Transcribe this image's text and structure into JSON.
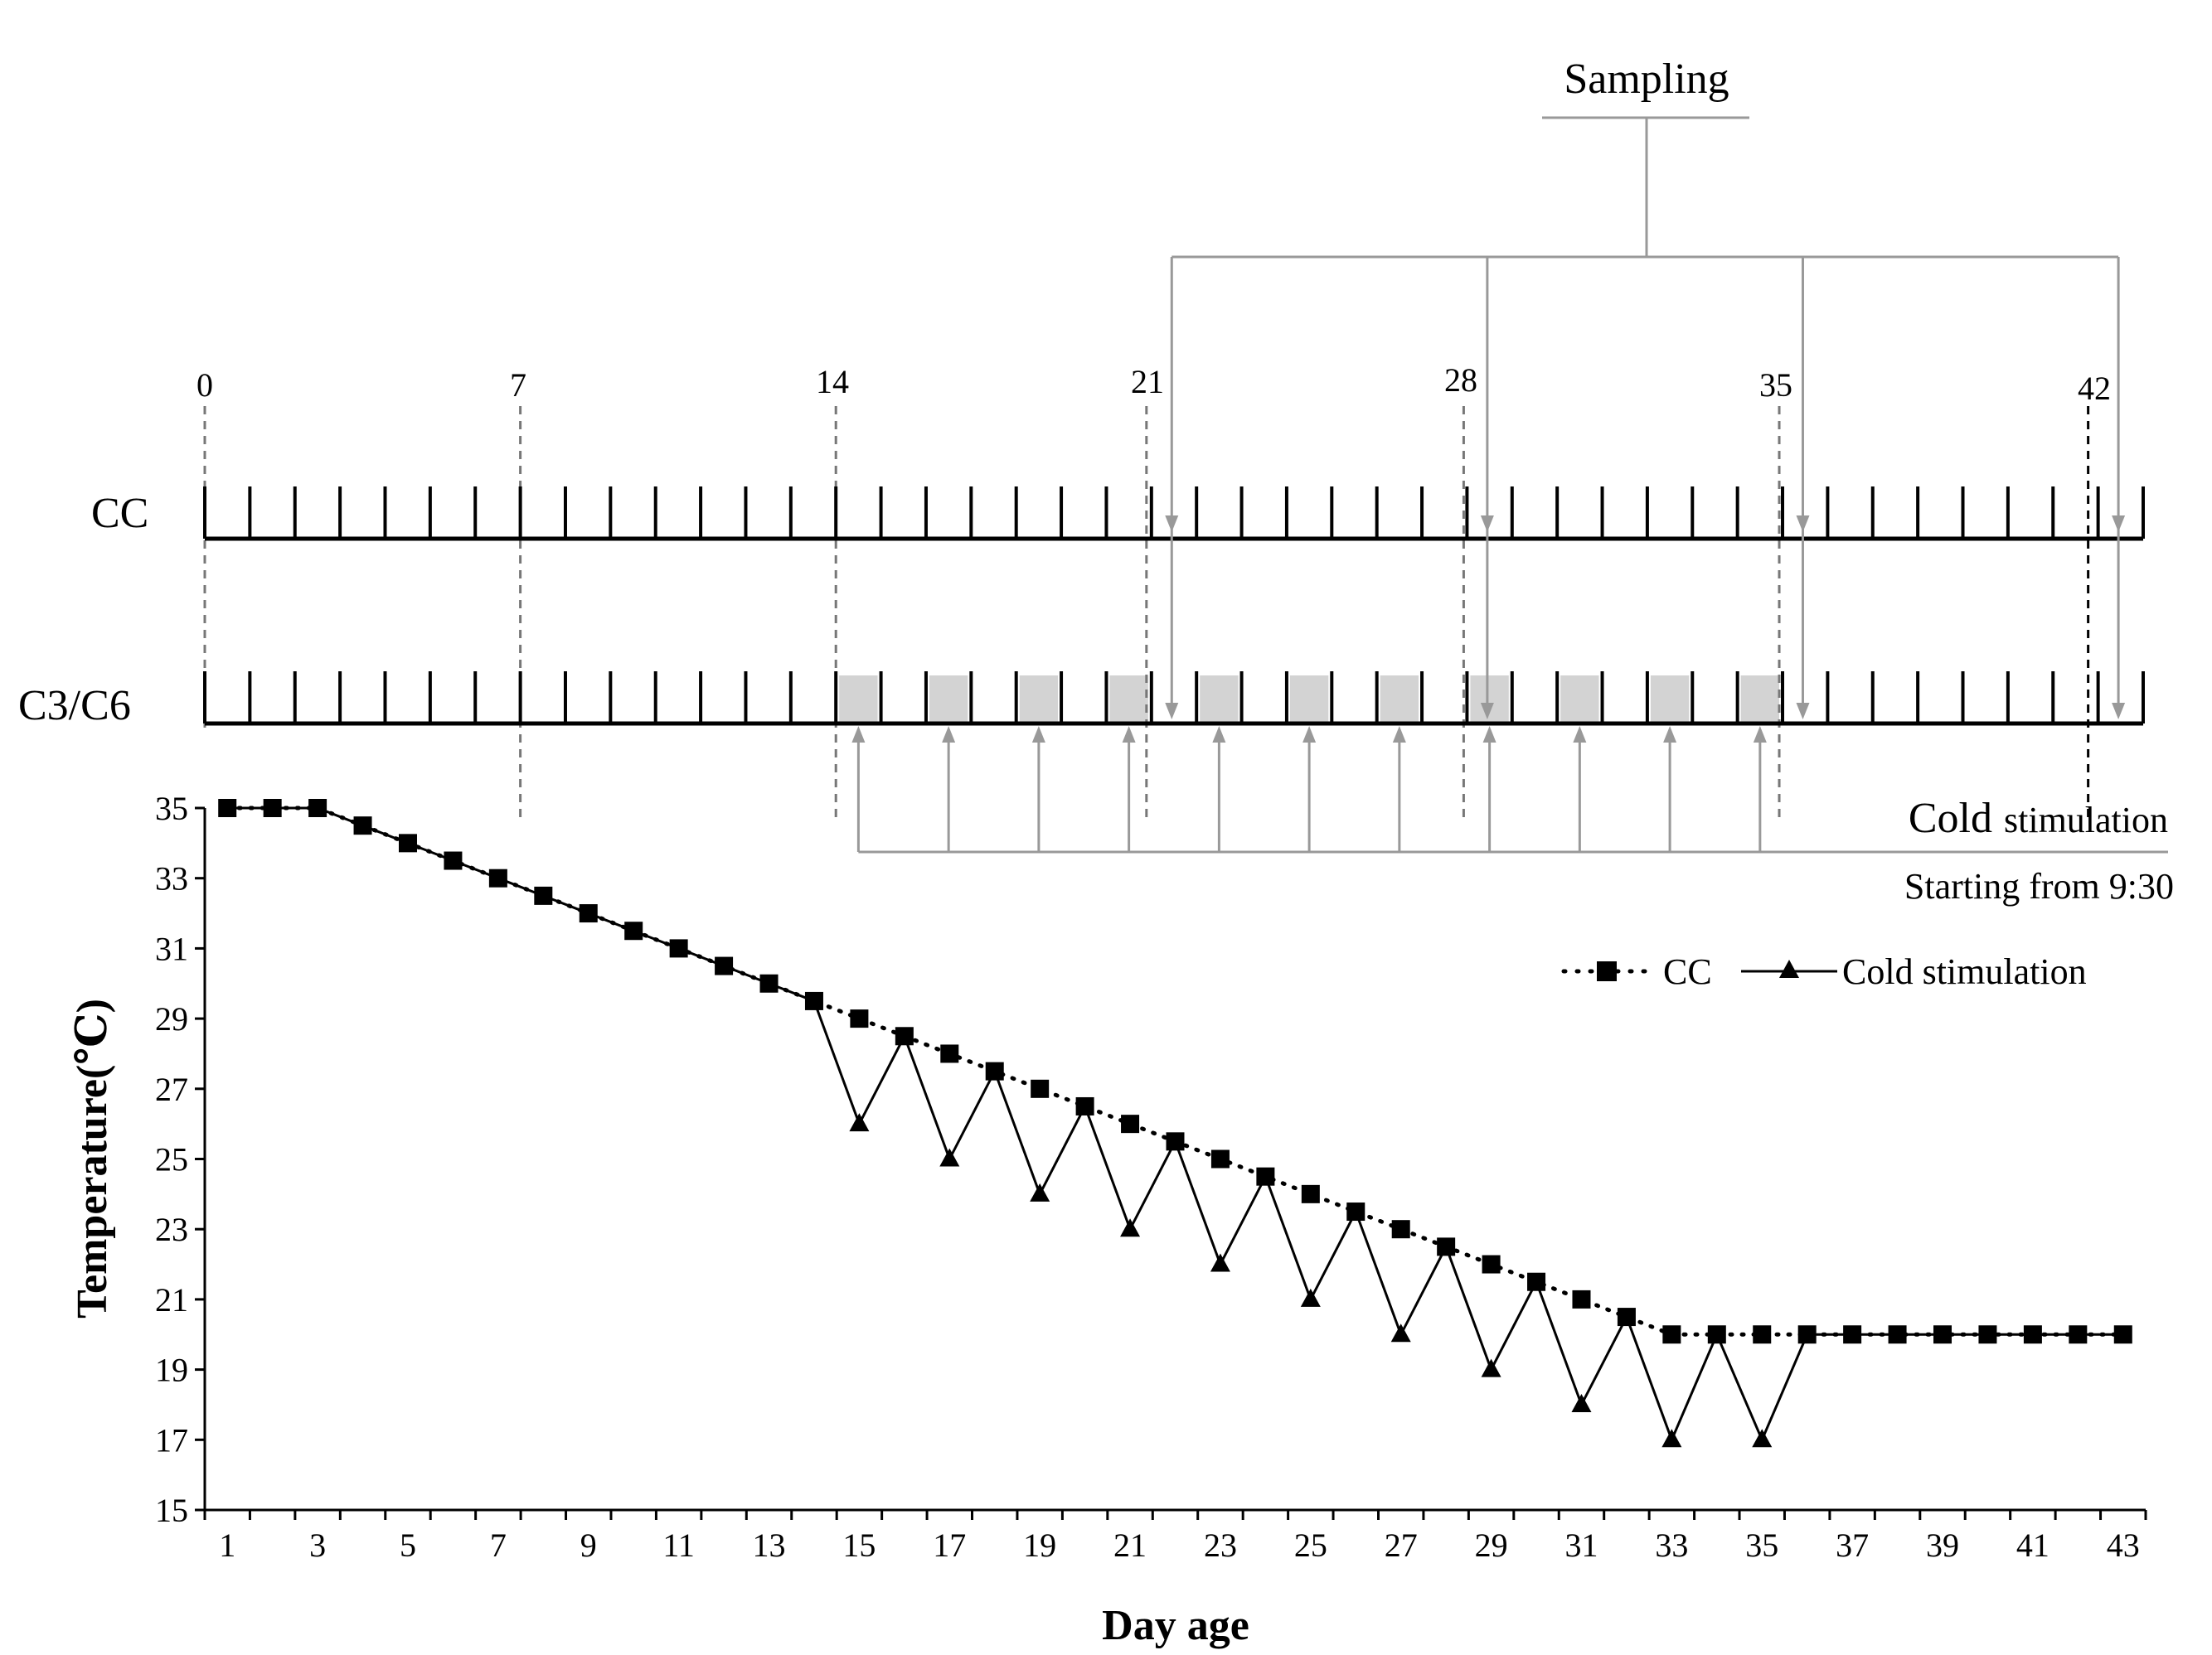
{
  "timeline": {
    "marker_days": [
      "0",
      "7",
      "14",
      "21",
      "28",
      "35",
      "42"
    ],
    "row_cc_label": "CC",
    "row_cold_label": "C3/C6",
    "sampling_label": "Sampling",
    "cold_label_main": "Cold",
    "cold_label_rest": "stimulation",
    "start_time_label": "Starting from 9:30",
    "cold_window_days": [
      14,
      16,
      18,
      20,
      22,
      24,
      26,
      28,
      30,
      32,
      34
    ],
    "sampling_days": [
      21,
      28,
      35,
      42
    ]
  },
  "colors": {
    "line": "#000000",
    "guide": "#999999",
    "dashed": "#777777",
    "shade": "#d3d3d3"
  },
  "chart_data": {
    "type": "line",
    "title": "",
    "xlabel": "Day age",
    "ylabel": "Temperature(℃)",
    "xlim": [
      1,
      43
    ],
    "ylim": [
      15,
      35
    ],
    "x_tick_labels": [
      "1",
      "3",
      "5",
      "7",
      "9",
      "11",
      "13",
      "15",
      "17",
      "19",
      "21",
      "23",
      "25",
      "27",
      "29",
      "31",
      "33",
      "35",
      "37",
      "39",
      "41",
      "43"
    ],
    "y_tick_labels": [
      "15",
      "17",
      "19",
      "21",
      "23",
      "25",
      "27",
      "29",
      "31",
      "33",
      "35"
    ],
    "x": [
      1,
      2,
      3,
      4,
      5,
      6,
      7,
      8,
      9,
      10,
      11,
      12,
      13,
      14,
      15,
      16,
      17,
      18,
      19,
      20,
      21,
      22,
      23,
      24,
      25,
      26,
      27,
      28,
      29,
      30,
      31,
      32,
      33,
      34,
      35,
      36,
      37,
      38,
      39,
      40,
      41,
      42,
      43
    ],
    "series": [
      {
        "name": "CC",
        "marker": "square",
        "style": "dotted",
        "values": [
          35,
          35,
          35,
          34.5,
          34,
          33.5,
          33,
          32.5,
          32,
          31.5,
          31,
          30.5,
          30,
          29.5,
          29,
          28.5,
          28,
          27.5,
          27,
          26.5,
          26,
          25.5,
          25,
          24.5,
          24,
          23.5,
          23,
          22.5,
          22,
          21.5,
          21,
          20.5,
          20,
          20,
          20,
          20,
          20,
          20,
          20,
          20,
          20,
          20,
          20
        ]
      },
      {
        "name": "Cold stimulation",
        "marker": "triangle",
        "style": "solid",
        "values": [
          35,
          35,
          35,
          34.5,
          34,
          33.5,
          33,
          32.5,
          32,
          31.5,
          31,
          30.5,
          30,
          29.5,
          26,
          28.5,
          25,
          27.5,
          24,
          26.5,
          23,
          25.5,
          22,
          24.5,
          21,
          23.5,
          20,
          22.5,
          19,
          21.5,
          18,
          20.5,
          17,
          20,
          17,
          20,
          20,
          20,
          20,
          20,
          20,
          20,
          20
        ]
      }
    ],
    "legend": "top-right"
  }
}
